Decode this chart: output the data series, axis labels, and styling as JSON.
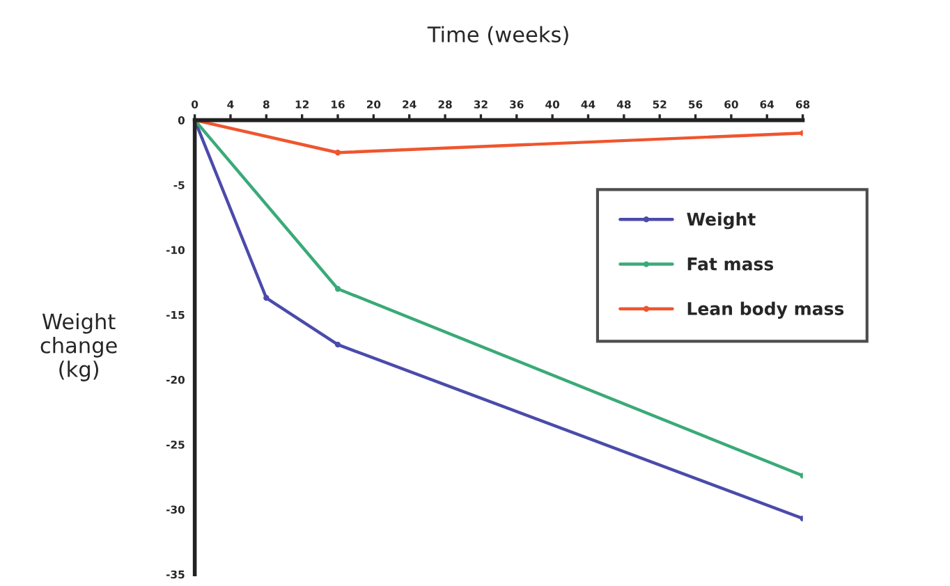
{
  "chart_data": {
    "type": "line",
    "xlabel": "Time (weeks)",
    "ylabel": "Weight\nchange\n(kg)",
    "xlim": [
      0,
      68
    ],
    "xticks": [
      0,
      4,
      8,
      12,
      16,
      20,
      24,
      28,
      32,
      36,
      40,
      44,
      48,
      52,
      56,
      60,
      64,
      68
    ],
    "ylim": [
      -35,
      0
    ],
    "yticks": [
      -35,
      -30,
      -25,
      -20,
      -15,
      -10,
      -5,
      0
    ],
    "x": [
      0,
      8,
      16,
      68
    ],
    "series": [
      {
        "name": "Weight",
        "color": "#4b4bab",
        "values": [
          0,
          -13.7,
          -17.3,
          -30.7
        ]
      },
      {
        "name": "Fat mass",
        "color": "#3aaa78",
        "x": [
          0,
          16,
          68
        ],
        "values": [
          0,
          -13.0,
          -27.4
        ]
      },
      {
        "name": "Lean body mass",
        "color": "#f0552e",
        "x": [
          0,
          16,
          68
        ],
        "values": [
          0,
          -2.5,
          -1.0
        ]
      }
    ],
    "marker": "circle",
    "line_style": "solid",
    "legend": "right",
    "grid": false
  }
}
